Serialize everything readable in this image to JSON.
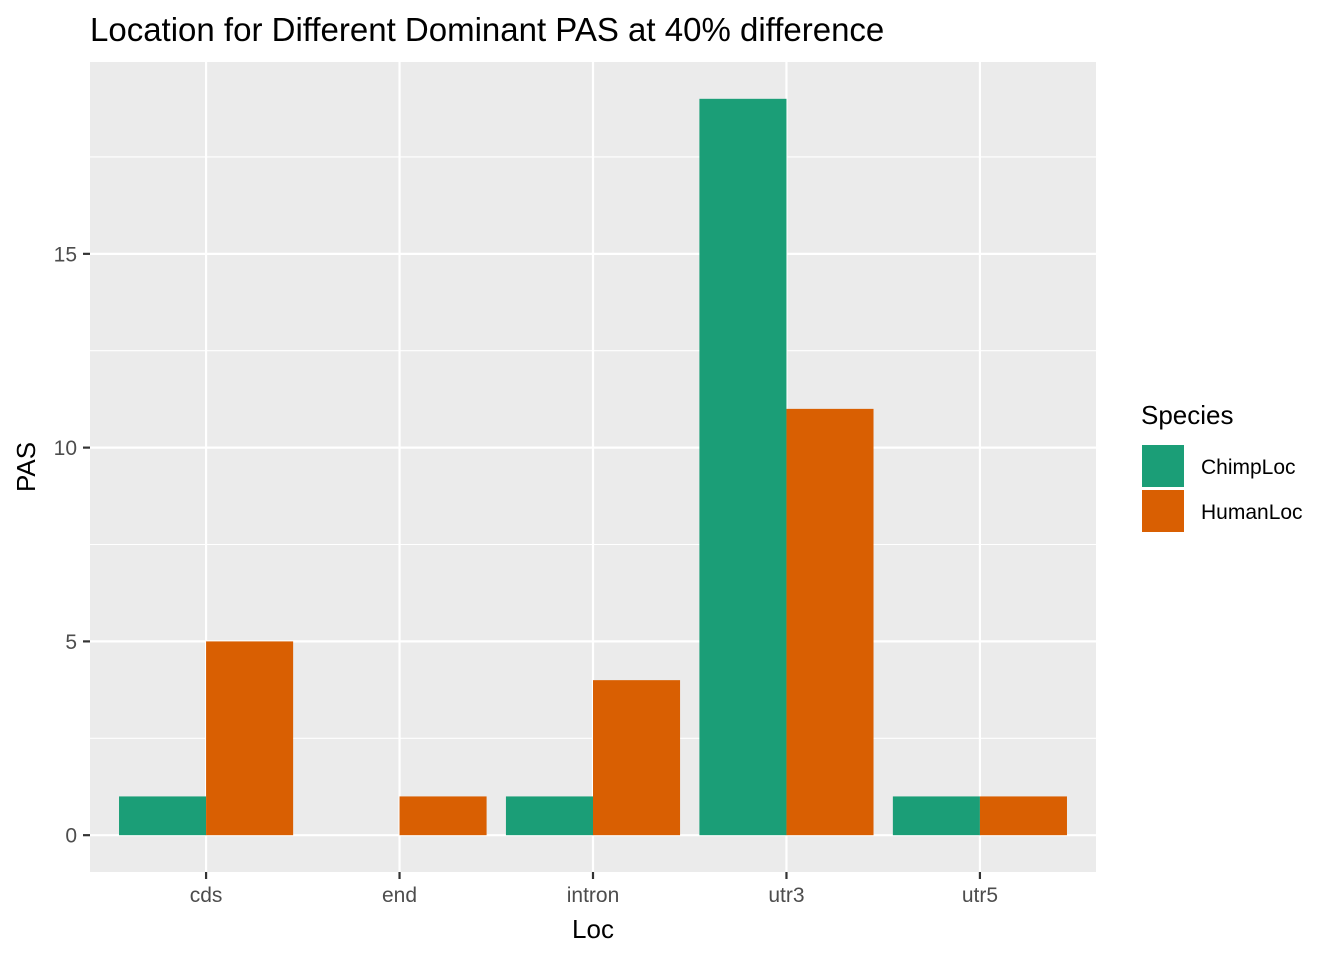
{
  "chart_data": {
    "type": "bar",
    "title": "Location for Different Dominant PAS at 40% difference",
    "xlabel": "Loc",
    "ylabel": "PAS",
    "categories": [
      "cds",
      "end",
      "intron",
      "utr3",
      "utr5"
    ],
    "series": [
      {
        "name": "ChimpLoc",
        "values": [
          1,
          0,
          1,
          19,
          1
        ],
        "color": "#1B9E77"
      },
      {
        "name": "HumanLoc",
        "values": [
          5,
          1,
          4,
          11,
          1
        ],
        "color": "#D95F02"
      }
    ],
    "yticks": [
      0,
      5,
      10,
      15
    ],
    "ylim": [
      -0.95,
      19.95
    ],
    "grid": true,
    "panel_background": "#EBEBEB",
    "legend": {
      "title": "Species",
      "position": "right"
    }
  }
}
